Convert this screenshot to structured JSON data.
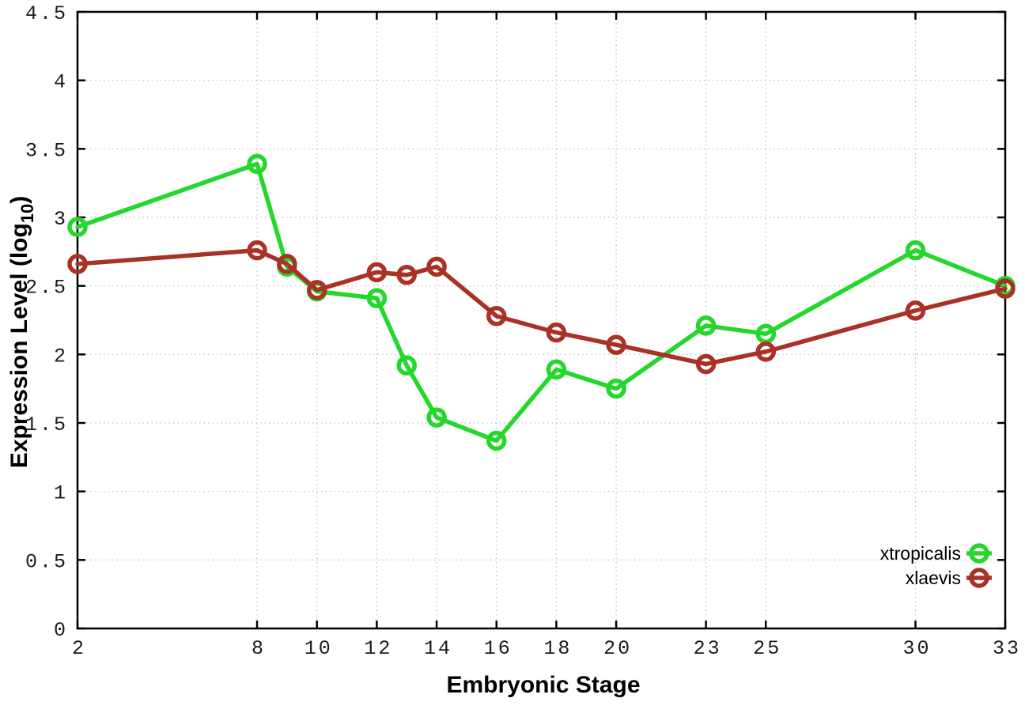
{
  "figure": {
    "xlabel": "Embryonic Stage",
    "ylabel": {
      "pre": "Expression Level (log",
      "sub": "10",
      "post": ")"
    }
  },
  "chart_data": {
    "type": "line",
    "title": "",
    "xlabel": "Embryonic Stage",
    "ylabel": "Expression Level (log10)",
    "x": [
      2,
      8,
      9,
      10,
      12,
      13,
      14,
      16,
      18,
      20,
      23,
      25,
      30,
      33
    ],
    "series": [
      {
        "name": "xtropicalis",
        "color": "#23d72b",
        "marker": "open-circle",
        "values": [
          2.93,
          3.39,
          2.64,
          2.46,
          2.41,
          1.92,
          1.54,
          1.37,
          1.89,
          1.75,
          2.21,
          2.15,
          2.76,
          2.5
        ]
      },
      {
        "name": "xlaevis",
        "color": "#a93226",
        "marker": "open-circle",
        "values": [
          2.66,
          2.76,
          2.66,
          2.47,
          2.6,
          2.58,
          2.64,
          2.28,
          2.16,
          2.07,
          1.93,
          2.02,
          2.32,
          2.48
        ]
      }
    ],
    "xticks": [
      2,
      8,
      10,
      12,
      14,
      16,
      18,
      20,
      23,
      25,
      30,
      33
    ],
    "yticks": [
      "0",
      "0.5",
      "1",
      "1.5",
      "2",
      "2.5",
      "3",
      "3.5",
      "4",
      "4.5"
    ],
    "xlim": [
      2,
      33
    ],
    "ylim": [
      0,
      4.5
    ],
    "grid": true,
    "grid_style": "dotted",
    "legend_position": "bottom-right",
    "background": "#ffffff",
    "border_color": "#000000",
    "grid_color": "#bdbdbd"
  }
}
